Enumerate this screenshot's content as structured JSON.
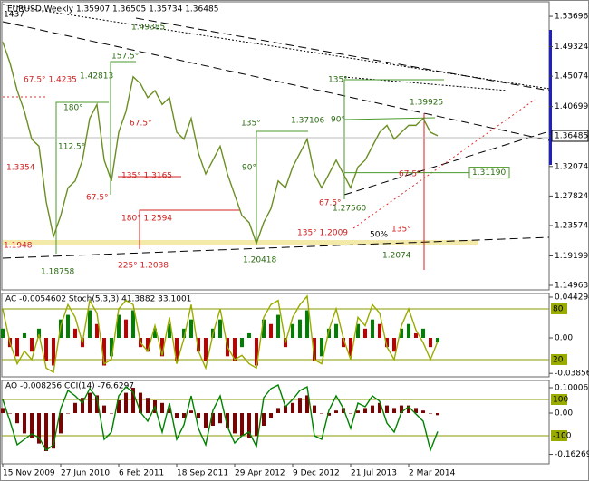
{
  "chart_data": [
    {
      "type": "line",
      "title": "EURUSD,Weekly  1.35907 1.36505 1.35734 1.36485",
      "color": "#6b8e23",
      "categories": [
        "15 Nov 2009",
        null,
        null,
        null,
        null,
        null,
        null,
        null,
        "27 Jun 2010",
        null,
        null,
        null,
        null,
        null,
        null,
        null,
        "6 Feb 2011",
        null,
        null,
        null,
        null,
        null,
        null,
        null,
        "18 Sep 2011",
        null,
        null,
        null,
        null,
        null,
        null,
        null,
        "29 Apr 2012",
        null,
        null,
        null,
        null,
        null,
        null,
        null,
        "9 Dec 2012",
        null,
        null,
        null,
        null,
        null,
        null,
        null,
        "21 Jul 2013",
        null,
        null,
        null,
        null,
        null,
        null,
        null,
        "2 Mar 2014",
        null,
        null,
        null,
        null
      ],
      "series": [
        {
          "name": "EURUSD",
          "color": "#6b8e23",
          "values": [
            1.5,
            1.47,
            1.43,
            1.4,
            1.36,
            1.35,
            1.27,
            1.22,
            1.25,
            1.29,
            1.3,
            1.33,
            1.39,
            1.41,
            1.33,
            1.3,
            1.37,
            1.4,
            1.45,
            1.44,
            1.42,
            1.43,
            1.41,
            1.42,
            1.37,
            1.36,
            1.39,
            1.34,
            1.31,
            1.33,
            1.35,
            1.31,
            1.28,
            1.25,
            1.24,
            1.21,
            1.24,
            1.26,
            1.3,
            1.29,
            1.32,
            1.34,
            1.36,
            1.31,
            1.29,
            1.31,
            1.33,
            1.31,
            1.29,
            1.32,
            1.33,
            1.35,
            1.37,
            1.38,
            1.36,
            1.37,
            1.38,
            1.38,
            1.39,
            1.37,
            1.365
          ]
        }
      ],
      "ylim": [
        1.1431,
        1.5579
      ],
      "yticks": [
        1.53696,
        1.49324,
        1.45074,
        1.40699,
        1.36485,
        1.32074,
        1.27824,
        1.23574,
        1.19199,
        1.14963
      ],
      "level": 1.3119,
      "level_label": "1.31190",
      "annotations": [
        "1437",
        "67.5° 1.4235",
        "1.3354",
        "67.5°",
        "135° 1.3165",
        "67.5°",
        "180° 1.2594",
        "225° 1.2038",
        "135° 1.2009",
        "67.5°",
        "67.5°",
        "135°",
        "1.1948",
        "157.5°",
        "180°",
        "112.5°",
        "135°",
        "90°",
        "135°",
        "90°",
        "1.42813",
        "1.49385",
        "1.37106",
        "1.39925",
        "1.27560",
        "1.20418",
        "1.18758",
        "1.2074",
        "50%"
      ]
    },
    {
      "type": "bar",
      "title": "AC -0.0054602  Stoch(5,3,3) 41.3882 33.1001",
      "series": [
        {
          "name": "AC",
          "color": "#008000",
          "values": [
            0.01,
            -0.01,
            -0.02,
            0.005,
            -0.015,
            0.01,
            -0.025,
            -0.03,
            0.02,
            0.025,
            0.01,
            -0.01,
            0.03,
            0.015,
            -0.03,
            -0.02,
            0.025,
            0.02,
            0.03,
            -0.01,
            -0.015,
            0.01,
            -0.02,
            0.015,
            -0.025,
            0.01,
            0.02,
            -0.015,
            -0.025,
            0.01,
            0.02,
            -0.02,
            -0.025,
            -0.01,
            0.005,
            -0.03,
            0.02,
            0.015,
            0.025,
            -0.01,
            0.015,
            0.02,
            0.03,
            -0.025,
            -0.02,
            0.01,
            0.015,
            -0.01,
            -0.02,
            0.015,
            0.01,
            0.02,
            0.015,
            -0.01,
            -0.015,
            0.01,
            0.015,
            0.005,
            0.01,
            -0.01,
            -0.005
          ]
        },
        {
          "name": "Stoch",
          "color": "#9aab00",
          "axis": "y2",
          "values": [
            80,
            40,
            15,
            30,
            20,
            50,
            10,
            5,
            60,
            85,
            70,
            40,
            90,
            75,
            15,
            20,
            80,
            90,
            85,
            40,
            30,
            60,
            25,
            70,
            15,
            45,
            85,
            30,
            10,
            50,
            80,
            35,
            20,
            25,
            15,
            10,
            70,
            85,
            90,
            40,
            70,
            85,
            95,
            20,
            15,
            55,
            80,
            45,
            20,
            70,
            60,
            85,
            75,
            35,
            20,
            60,
            80,
            55,
            40,
            20,
            41.3882
          ]
        }
      ],
      "ylim": [
        -0.0423,
        0.0482
      ],
      "yticks": [
        0.044294,
        {
          "value": 0,
          "label": "0.00"
        },
        -0.038569
      ],
      "y2lim": [
        -0.4,
        98.2
      ],
      "y2ticks": [
        80,
        20
      ]
    },
    {
      "type": "bar",
      "title": "AO -0.008256  CCI(14) -76.6297",
      "series": [
        {
          "name": "AO",
          "color": "#800000",
          "values": [
            0.02,
            0.0,
            -0.04,
            -0.08,
            -0.1,
            -0.12,
            -0.15,
            -0.14,
            -0.08,
            0.0,
            0.04,
            0.06,
            0.08,
            0.07,
            0.03,
            0.0,
            0.05,
            0.08,
            0.1,
            0.08,
            0.06,
            0.05,
            0.04,
            0.02,
            -0.02,
            -0.02,
            0.01,
            -0.02,
            -0.06,
            -0.05,
            -0.04,
            -0.06,
            -0.08,
            -0.09,
            -0.1,
            -0.09,
            -0.05,
            -0.02,
            0.02,
            0.03,
            0.04,
            0.06,
            0.07,
            0.03,
            0.0,
            -0.01,
            0.01,
            0.02,
            0.0,
            0.01,
            0.02,
            0.03,
            0.04,
            0.03,
            0.02,
            0.03,
            0.03,
            0.02,
            0.01,
            0.0,
            -0.008256
          ]
        },
        {
          "name": "CCI",
          "color": "#008000",
          "axis": "y2",
          "values": [
            100,
            -20,
            -150,
            -120,
            -90,
            -110,
            -180,
            -150,
            50,
            150,
            120,
            80,
            160,
            110,
            -120,
            -80,
            120,
            170,
            140,
            30,
            -20,
            60,
            -80,
            80,
            -120,
            -40,
            120,
            -60,
            -150,
            40,
            120,
            -50,
            -140,
            -100,
            -80,
            -160,
            110,
            160,
            180,
            60,
            100,
            150,
            170,
            -100,
            -120,
            40,
            120,
            50,
            -60,
            80,
            60,
            120,
            90,
            -30,
            -80,
            30,
            60,
            20,
            -20,
            -180,
            -76.6297
          ]
        }
      ],
      "ylim": [
        -0.2,
        0.1286
      ],
      "yticks": [
        0.100061,
        {
          "value": 0,
          "label": "0.00"
        },
        -0.162695
      ],
      "y2lim": [
        -255,
        205
      ],
      "y2ticks": [
        100,
        -100
      ]
    }
  ]
}
